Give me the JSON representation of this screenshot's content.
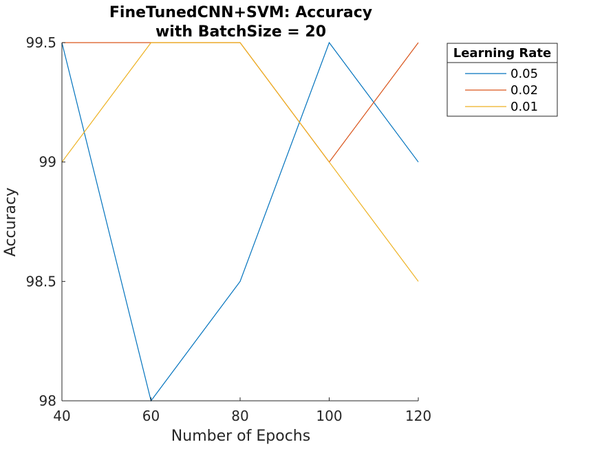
{
  "chart_data": {
    "type": "line",
    "title": [
      "FineTunedCNN+SVM: Accuracy",
      "with BatchSize = 20"
    ],
    "xlabel": "Number of Epochs",
    "ylabel": "Accuracy",
    "x": [
      40,
      60,
      80,
      100,
      120
    ],
    "xlim": [
      40,
      120
    ],
    "ylim": [
      98,
      99.5
    ],
    "xticks": [
      "40",
      "60",
      "80",
      "100",
      "120"
    ],
    "yticks": [
      "98",
      "98.5",
      "99",
      "99.5"
    ],
    "grid": false,
    "legend": {
      "title": "Learning Rate",
      "placement": "outside-top-right"
    },
    "series": [
      {
        "name": "0.05",
        "color": "#0072BD",
        "values": [
          99.5,
          98,
          98.5,
          99.5,
          99
        ]
      },
      {
        "name": "0.02",
        "color": "#D95319",
        "values": [
          99.5,
          99.5,
          99.5,
          99,
          99.5
        ]
      },
      {
        "name": "0.01",
        "color": "#EDB120",
        "values": [
          99,
          99.5,
          99.5,
          99,
          98.5
        ]
      }
    ]
  }
}
